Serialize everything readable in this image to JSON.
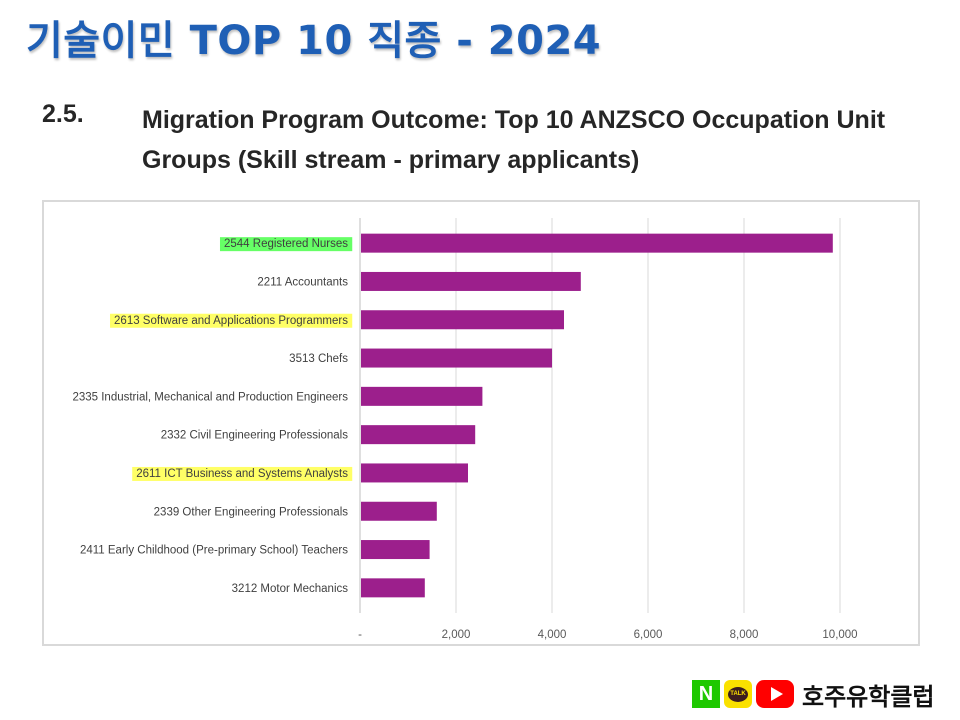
{
  "slide_title": "기술이민 TOP 10 직종 - 2024",
  "section": {
    "number": "2.5.",
    "title": "Migration Program Outcome: Top 10 ANZSCO Occupation Unit Groups (Skill stream - primary applicants)"
  },
  "footer": {
    "naver_letter": "N",
    "talk_text": "TALK",
    "brand_name": "호주유학클럽",
    "icons": [
      "naver-icon",
      "kakaotalk-icon",
      "youtube-icon"
    ]
  },
  "colors": {
    "title_blue": "#1f5fb5",
    "bar": "#9c1f8c",
    "highlight_green": "#66ff66",
    "highlight_yellow": "#ffff66",
    "grid": "#d9d9d9"
  },
  "chart_data": {
    "type": "bar",
    "orientation": "horizontal",
    "title": "",
    "xlabel": "",
    "ylabel": "",
    "xlim": [
      0,
      10000
    ],
    "grid": true,
    "legend": "none",
    "xticks": [
      {
        "value": 0,
        "label": "-"
      },
      {
        "value": 2000,
        "label": "2,000"
      },
      {
        "value": 4000,
        "label": "4,000"
      },
      {
        "value": 6000,
        "label": "6,000"
      },
      {
        "value": 8000,
        "label": "8,000"
      },
      {
        "value": 10000,
        "label": "10,000"
      }
    ],
    "categories": [
      "2544 Registered Nurses",
      "2211 Accountants",
      "2613 Software and Applications Programmers",
      "3513 Chefs",
      "2335 Industrial, Mechanical and Production Engineers",
      "2332 Civil Engineering Professionals",
      "2611 ICT Business and Systems Analysts",
      "2339 Other Engineering Professionals",
      "2411 Early Childhood (Pre-primary School) Teachers",
      "3212 Motor Mechanics"
    ],
    "values": [
      9850,
      4600,
      4250,
      4000,
      2550,
      2400,
      2250,
      1600,
      1450,
      1350
    ],
    "highlights": [
      "green",
      "none",
      "yellow",
      "none",
      "none",
      "none",
      "yellow",
      "none",
      "none",
      "none"
    ]
  }
}
